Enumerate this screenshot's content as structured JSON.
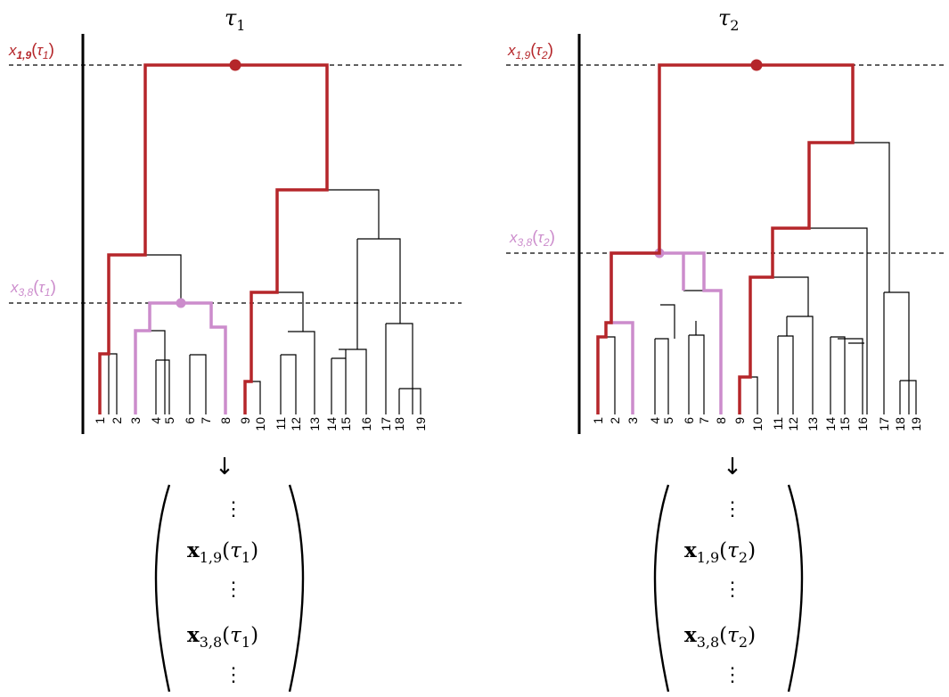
{
  "colors": {
    "dark": "#b5262a",
    "light": "#cc8ccc",
    "black": "#000000"
  },
  "panels": [
    {
      "id": "tau1",
      "title": {
        "base": "τ",
        "sub": "1"
      },
      "labels": {
        "upper": {
          "base": "x",
          "sub": "1,9",
          "arg": "τ",
          "argsub": "1"
        },
        "lower": {
          "base": "x",
          "sub": "3,8",
          "arg": "τ",
          "argsub": "1"
        }
      },
      "leaves": [
        "1",
        "2",
        "3",
        "4",
        "5",
        "6",
        "7",
        "8",
        "9",
        "10",
        "11",
        "12",
        "13",
        "14",
        "15",
        "16",
        "17",
        "18",
        "19"
      ],
      "vector": {
        "arrow": "↓",
        "row1": {
          "sym": "x",
          "sub": "1,9",
          "arg": "τ",
          "argsub": "1"
        },
        "row2": {
          "sym": "x",
          "sub": "3,8",
          "arg": "τ",
          "argsub": "1"
        }
      }
    },
    {
      "id": "tau2",
      "title": {
        "base": "τ",
        "sub": "2"
      },
      "labels": {
        "upper": {
          "base": "x",
          "sub": "1,9",
          "arg": "τ",
          "argsub": "2"
        },
        "lower": {
          "base": "x",
          "sub": "3,8",
          "arg": "τ",
          "argsub": "2"
        }
      },
      "leaves": [
        "1",
        "2",
        "3",
        "4",
        "5",
        "6",
        "7",
        "8",
        "9",
        "10",
        "11",
        "12",
        "13",
        "14",
        "15",
        "16",
        "17",
        "18",
        "19"
      ],
      "vector": {
        "arrow": "↓",
        "row1": {
          "sym": "x",
          "sub": "1,9",
          "arg": "τ",
          "argsub": "2"
        },
        "row2": {
          "sym": "x",
          "sub": "3,8",
          "arg": "τ",
          "argsub": "2"
        }
      }
    }
  ]
}
